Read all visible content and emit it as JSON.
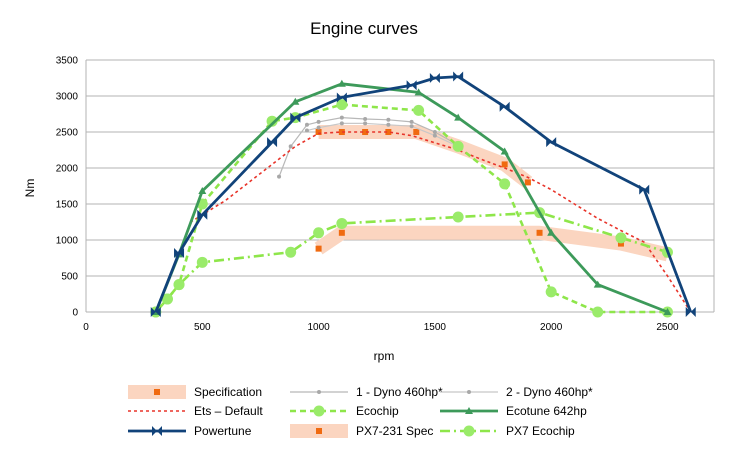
{
  "chart_data": {
    "type": "line",
    "title": "Engine curves",
    "xlabel": "rpm",
    "ylabel": "Nm",
    "xlim": [
      0,
      2700
    ],
    "ylim": [
      0,
      3500
    ],
    "xticks": [
      0,
      500,
      1000,
      1500,
      2000,
      2500
    ],
    "yticks": [
      0,
      500,
      1000,
      1500,
      2000,
      2500,
      3000,
      3500
    ],
    "grid": "horizontal",
    "legend_position": "bottom",
    "series": [
      {
        "name": "Specification",
        "color": "#fbd5c0",
        "marker_color": "#f06a10",
        "style": "band",
        "marker": "square",
        "x": [
          1000,
          1100,
          1200,
          1300,
          1420,
          1600,
          1800,
          1900
        ],
        "y": [
          2500,
          2500,
          2500,
          2500,
          2500,
          2300,
          2050,
          1800
        ]
      },
      {
        "name": "1 - Dyno 460hp*",
        "color": "#b8b8b8",
        "marker_color": "#a8a8a8",
        "style": "thin",
        "marker": "dot",
        "x": [
          830,
          880,
          950,
          1000,
          1100,
          1200,
          1300,
          1400,
          1500,
          1600
        ],
        "y": [
          1880,
          2300,
          2600,
          2640,
          2700,
          2680,
          2670,
          2640,
          2500,
          2320
        ]
      },
      {
        "name": "2 - Dyno 460hp*",
        "color": "#c8c8c8",
        "marker_color": "#a8a8a8",
        "style": "thin",
        "marker": "dot",
        "x": [
          950,
          1000,
          1100,
          1200,
          1300,
          1400,
          1500,
          1600
        ],
        "y": [
          2520,
          2560,
          2620,
          2620,
          2600,
          2580,
          2450,
          2300
        ]
      },
      {
        "name": "Ets – Default",
        "color": "#e8342a",
        "style": "dotted",
        "marker": "none",
        "x": [
          300,
          400,
          450,
          500,
          600,
          700,
          800,
          900,
          1000,
          1100,
          1200,
          1300,
          1400,
          1500,
          1600,
          1700,
          1800,
          1900,
          2000,
          2100,
          2200,
          2300,
          2400,
          2500,
          2600
        ],
        "y": [
          0,
          800,
          1250,
          1350,
          1550,
          1800,
          2050,
          2300,
          2480,
          2500,
          2500,
          2500,
          2450,
          2350,
          2250,
          2120,
          2000,
          1870,
          1700,
          1500,
          1300,
          1130,
          970,
          500,
          0
        ]
      },
      {
        "name": "Ecochip",
        "color": "#8ee64a",
        "marker_color": "#9aeb6a",
        "style": "dash",
        "marker": "circle",
        "x": [
          300,
          350,
          400,
          500,
          800,
          900,
          1100,
          1430,
          1600,
          1800,
          2000,
          2200,
          2500
        ],
        "y": [
          0,
          180,
          380,
          1500,
          2650,
          2700,
          2880,
          2800,
          2300,
          1780,
          280,
          0,
          0
        ]
      },
      {
        "name": "Ecotune 642hp",
        "color": "#3d9a5a",
        "style": "solid",
        "marker": "triangle",
        "x": [
          300,
          400,
          500,
          900,
          1100,
          1430,
          1600,
          1800,
          2000,
          2200,
          2500
        ],
        "y": [
          0,
          800,
          1680,
          2920,
          3170,
          3050,
          2700,
          2230,
          1100,
          380,
          0
        ]
      },
      {
        "name": "Powertune",
        "color": "#11437a",
        "style": "solid",
        "marker": "bowtie",
        "x": [
          300,
          400,
          500,
          800,
          900,
          1100,
          1400,
          1500,
          1600,
          1800,
          2000,
          2400,
          2600
        ],
        "y": [
          0,
          820,
          1350,
          2360,
          2700,
          2980,
          3150,
          3250,
          3270,
          2850,
          2360,
          1700,
          0
        ]
      },
      {
        "name": "PX7-231 Spec",
        "color": "#fbd5c0",
        "marker_color": "#f06a10",
        "style": "band",
        "marker": "square",
        "x": [
          1000,
          1100,
          1950,
          2300,
          2500
        ],
        "y": [
          880,
          1100,
          1100,
          950,
          800
        ]
      },
      {
        "name": "PX7 Ecochip",
        "color": "#8ee64a",
        "marker_color": "#9aeb6a",
        "style": "dashdot",
        "marker": "circle",
        "x": [
          300,
          350,
          400,
          500,
          880,
          1000,
          1100,
          1600,
          1950,
          2300,
          2500
        ],
        "y": [
          0,
          180,
          380,
          690,
          830,
          1100,
          1230,
          1320,
          1380,
          1030,
          830
        ]
      }
    ]
  }
}
